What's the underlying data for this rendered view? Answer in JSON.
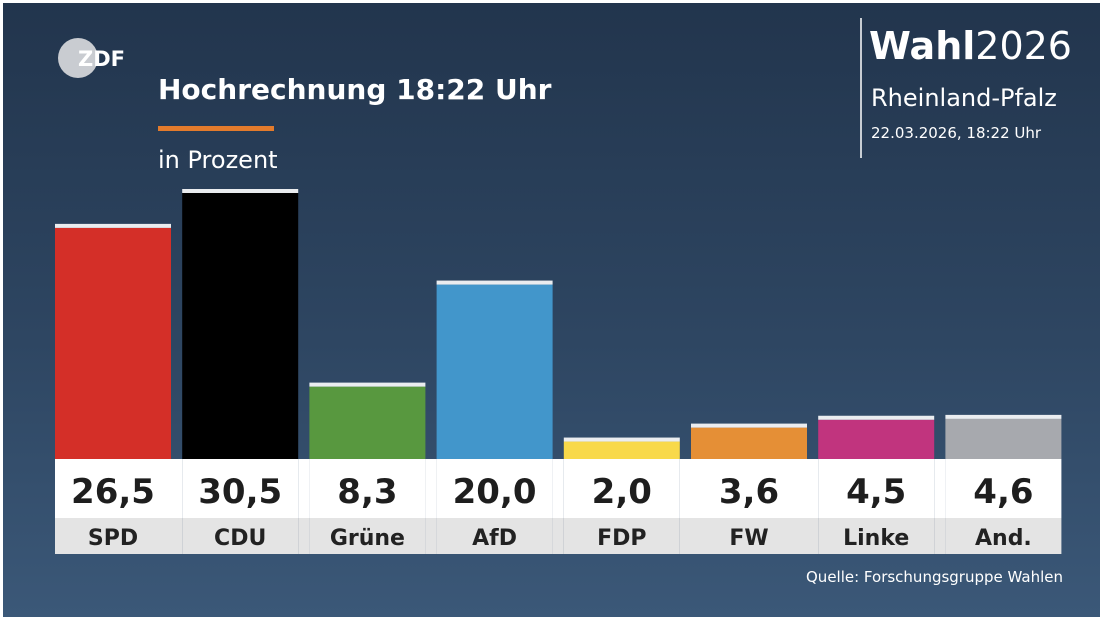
{
  "logo": {
    "text": "ZDF"
  },
  "header": {
    "title": "Hochrechnung 18:22 Uhr",
    "unit_label": "in Prozent",
    "accent_color": "#e37b2c"
  },
  "brand": {
    "wahl": "Wahl",
    "year": "2026",
    "region": "Rheinland-Pfalz",
    "datetime": "22.03.2026, 18:22 Uhr"
  },
  "footer": {
    "source": "Quelle: Forschungsgruppe Wahlen"
  },
  "chart_data": {
    "type": "bar",
    "title": "Hochrechnung 18:22 Uhr",
    "subtitle": "in Prozent",
    "xlabel": "",
    "ylabel": "",
    "ylim": [
      0,
      30.5
    ],
    "grid": false,
    "categories": [
      "SPD",
      "CDU",
      "Grüne",
      "AfD",
      "FDP",
      "FW",
      "Linke",
      "And."
    ],
    "values": [
      26.5,
      30.5,
      8.3,
      20.0,
      2.0,
      3.6,
      4.5,
      4.6
    ],
    "labels": [
      "26,5",
      "30,5",
      "8,3",
      "20,0",
      "2,0",
      "3,6",
      "4,5",
      "4,6"
    ],
    "colors": [
      "#d42f28",
      "#000000",
      "#58983f",
      "#4296cb",
      "#f8d94a",
      "#e58f36",
      "#c1347e",
      "#a7a9ae"
    ]
  }
}
